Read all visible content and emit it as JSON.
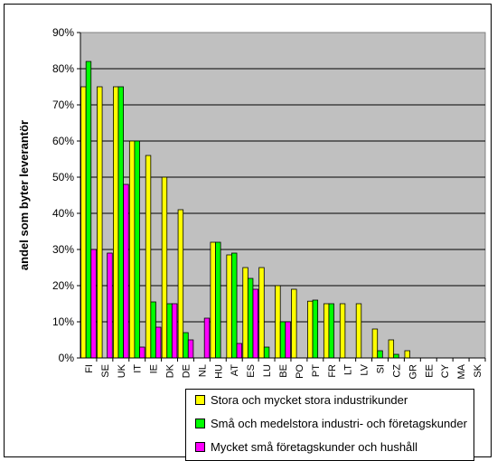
{
  "chart_data": {
    "type": "bar",
    "title": "",
    "xlabel": "",
    "ylabel": "andel som byter leverantör",
    "ylim": [
      0,
      90
    ],
    "yticks": [
      "0%",
      "10%",
      "20%",
      "30%",
      "40%",
      "50%",
      "60%",
      "70%",
      "80%",
      "90%"
    ],
    "categories": [
      "FI",
      "SE",
      "UK",
      "IT",
      "IE",
      "DK",
      "DE",
      "NL",
      "HU",
      "AT",
      "ES",
      "LU",
      "BE",
      "PO",
      "PT",
      "FR",
      "LT",
      "LV",
      "SI",
      "CZ",
      "GR",
      "EE",
      "CY",
      "MA",
      "SK"
    ],
    "series": [
      {
        "name": "Stora och mycket stora industrikunder",
        "color": "#ffff00",
        "values": [
          75,
          75,
          75,
          60,
          56,
          50,
          41,
          null,
          32,
          28.5,
          25,
          25,
          20,
          19,
          15.7,
          15,
          15,
          15,
          8,
          5,
          2,
          null,
          null,
          null,
          null
        ]
      },
      {
        "name": "Små och medelstora industri- och företagskunder",
        "color": "#00ff00",
        "values": [
          82,
          null,
          75,
          60,
          15.5,
          15,
          7,
          null,
          32,
          29,
          22,
          3,
          10,
          null,
          16,
          15,
          null,
          null,
          2,
          1,
          null,
          null,
          null,
          null,
          null
        ]
      },
      {
        "name": "Mycket små företagskunder och hushåll",
        "color": "#ff00ff",
        "values": [
          30,
          29,
          48,
          3,
          8.5,
          15,
          5,
          11,
          null,
          4,
          19,
          null,
          10,
          null,
          null,
          null,
          null,
          null,
          null,
          null,
          null,
          null,
          null,
          null,
          null
        ]
      }
    ],
    "grid": true,
    "legend": "bottom"
  }
}
